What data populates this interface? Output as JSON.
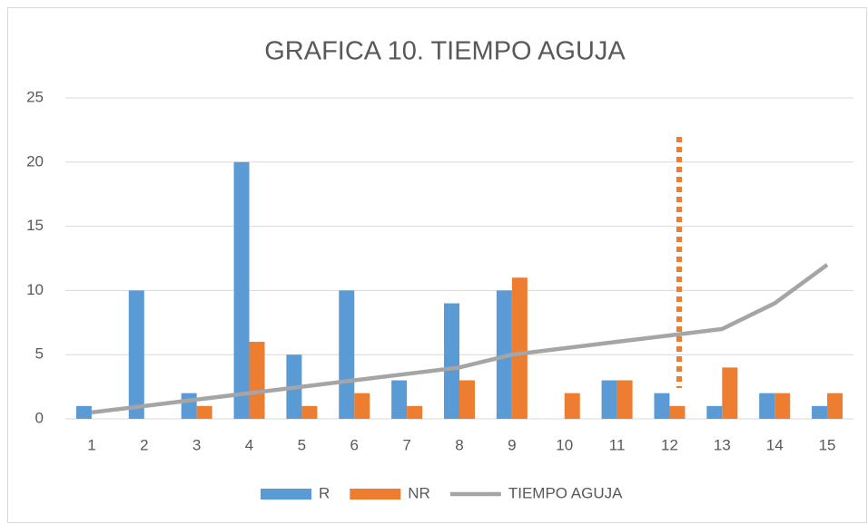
{
  "chart_data": {
    "type": "bar",
    "title": "GRAFICA 10. TIEMPO AGUJA",
    "categories": [
      "1",
      "2",
      "3",
      "4",
      "5",
      "6",
      "7",
      "8",
      "9",
      "10",
      "11",
      "12",
      "13",
      "14",
      "15"
    ],
    "series": [
      {
        "name": "R",
        "color": "#5b9bd5",
        "type": "bar",
        "values": [
          1,
          10,
          2,
          20,
          5,
          10,
          3,
          9,
          10,
          0,
          3,
          2,
          1,
          2,
          1
        ]
      },
      {
        "name": "NR",
        "color": "#ed7d31",
        "type": "bar",
        "values": [
          0,
          0,
          1,
          6,
          1,
          2,
          1,
          3,
          11,
          2,
          3,
          1,
          4,
          2,
          2
        ]
      },
      {
        "name": "TIEMPO AGUJA",
        "color": "#a5a5a5",
        "type": "line",
        "values": [
          0.5,
          1,
          1.5,
          2,
          2.5,
          3,
          3.5,
          4,
          5,
          5.5,
          6,
          6.5,
          7,
          9,
          12
        ]
      }
    ],
    "ylim": [
      0,
      25
    ],
    "yticks": [
      0,
      5,
      10,
      15,
      20,
      25
    ],
    "grid": true,
    "legend": "bottom"
  }
}
